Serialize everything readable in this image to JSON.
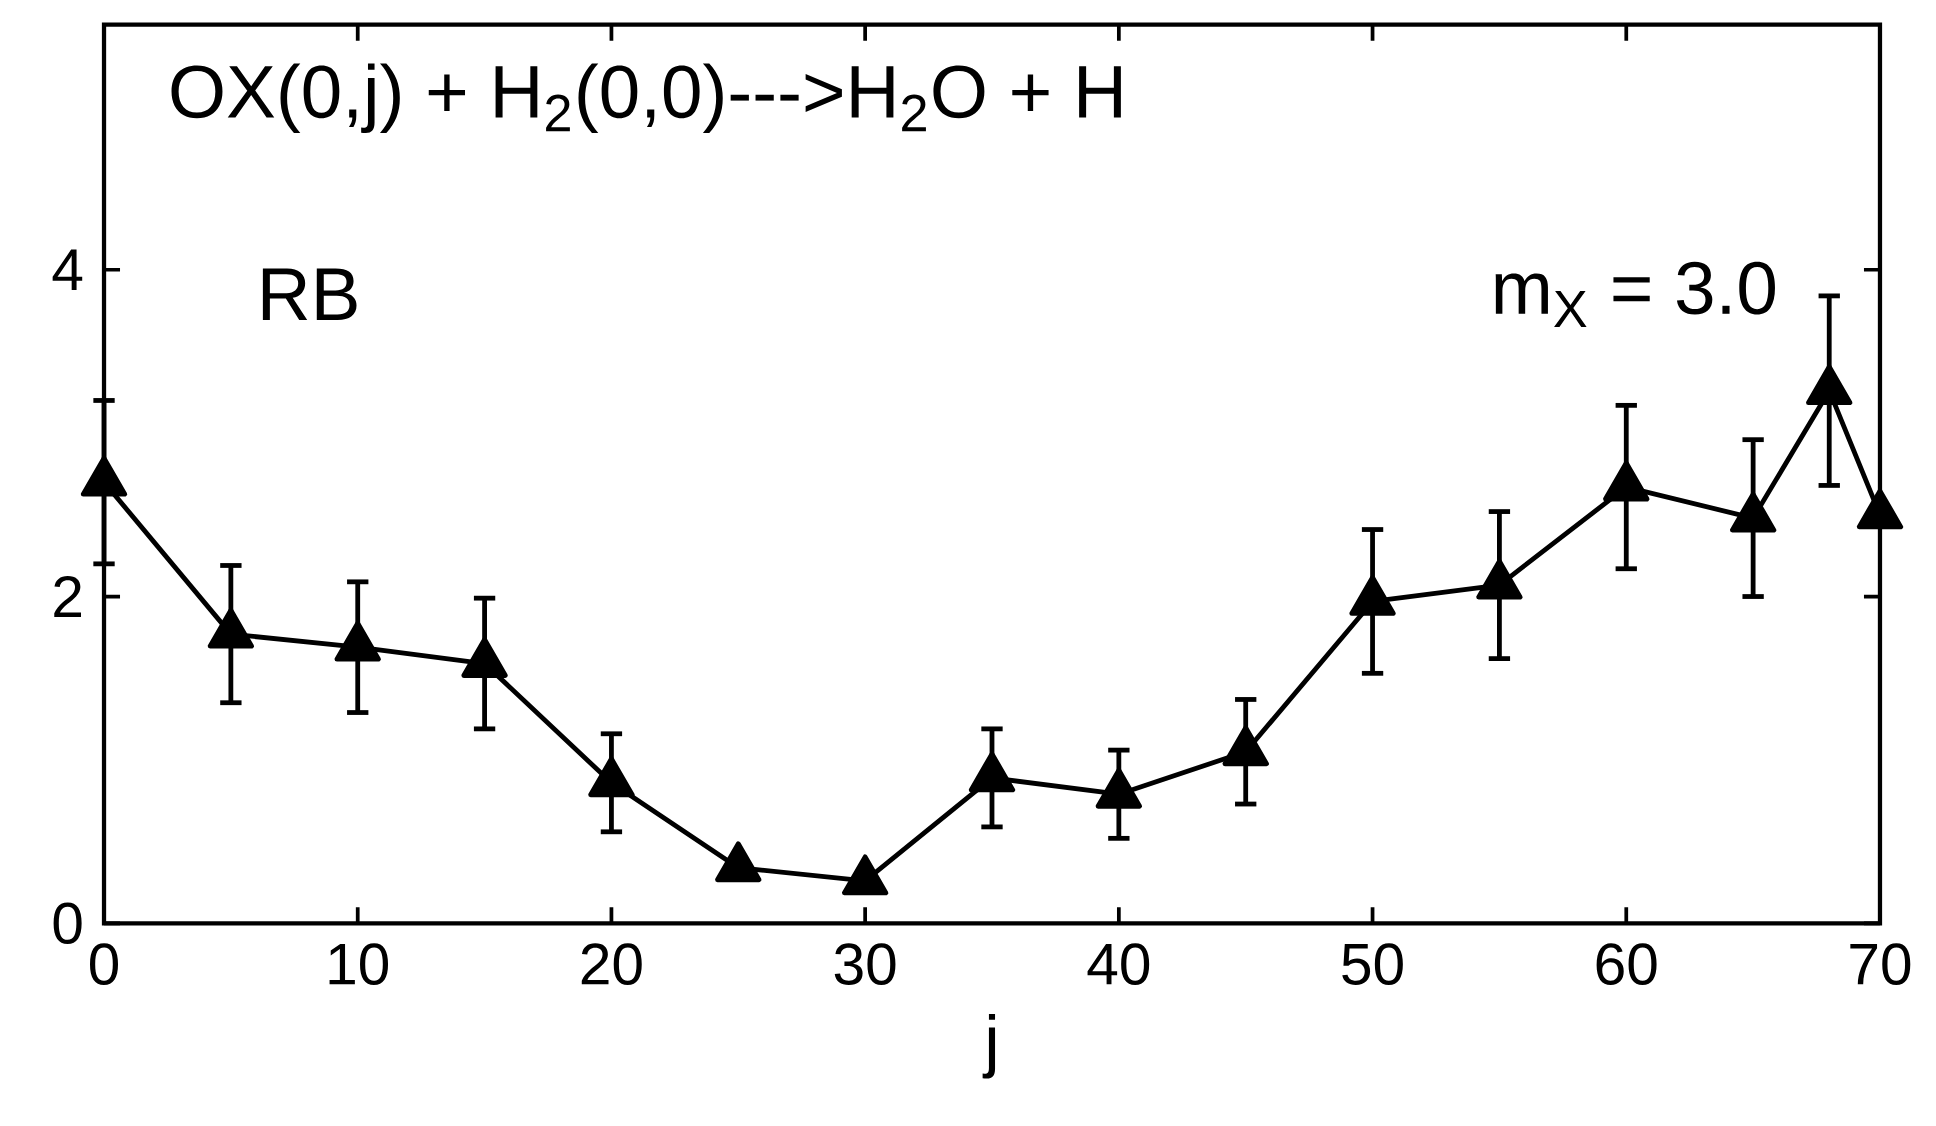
{
  "chart_data": {
    "type": "line",
    "annotations": [
      "OX(0,j) + H$_{2}$(0,0)--->H$_{2}$O + H",
      "RB",
      "m$_{X}$ = 3.0"
    ],
    "xlabel": "j",
    "x": [
      0,
      5,
      10,
      15,
      20,
      25,
      30,
      35,
      40,
      45,
      50,
      55,
      60,
      65,
      68,
      70
    ],
    "values": [
      2.7,
      1.77,
      1.69,
      1.59,
      0.86,
      0.34,
      0.26,
      0.89,
      0.79,
      1.05,
      1.97,
      2.07,
      2.67,
      2.48,
      3.26,
      2.5
    ],
    "errors": [
      0.5,
      0.42,
      0.4,
      0.4,
      0.3,
      null,
      null,
      0.3,
      0.27,
      0.32,
      0.44,
      0.45,
      0.5,
      0.48,
      0.58,
      null
    ],
    "color": "#000000",
    "marker": "triangle",
    "line_style": "solid",
    "xlim": [
      0,
      70
    ],
    "xticks": [
      0,
      10,
      20,
      30,
      40,
      50,
      60,
      70
    ],
    "ylim": [
      0,
      5.5
    ],
    "yticks": [
      0,
      2,
      4
    ]
  }
}
